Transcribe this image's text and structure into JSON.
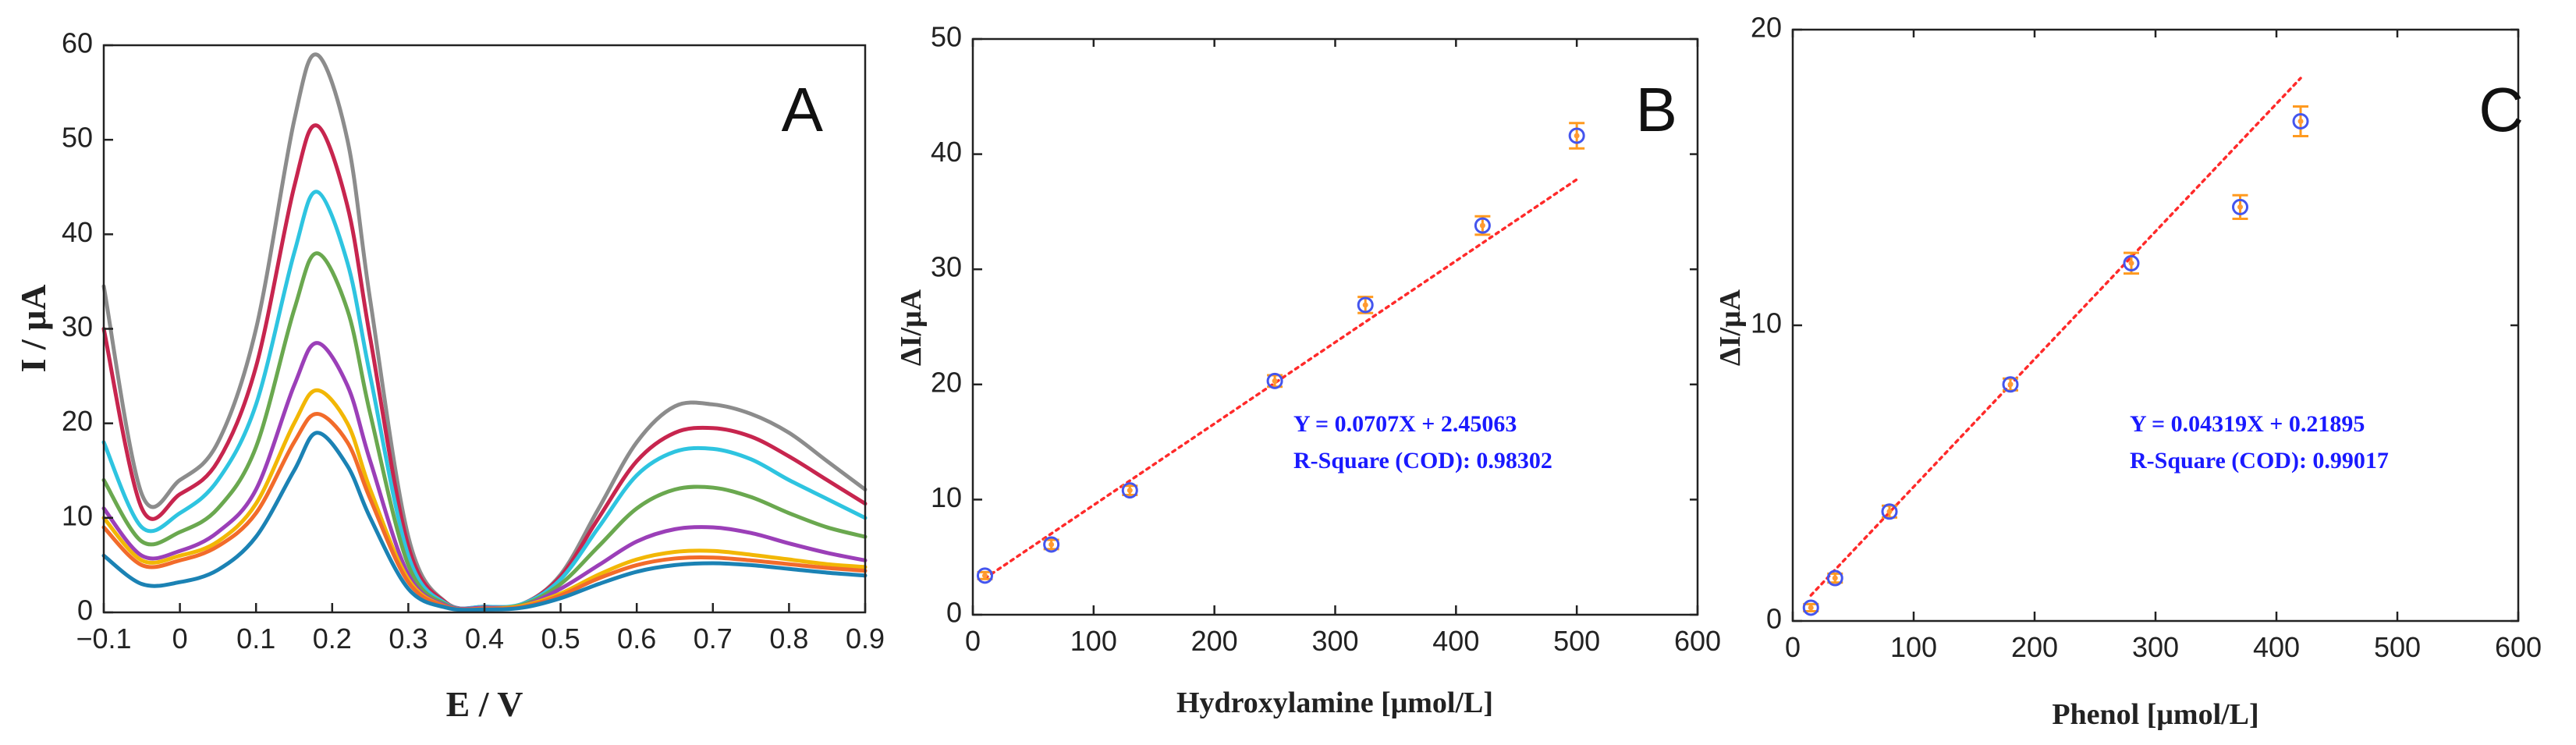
{
  "colors": {
    "fit_line": "#ff2a2a",
    "marker_edge": "#4455ee",
    "marker_fill": "#ff9a33",
    "error_bar": "#ff9a1f",
    "equation_text": "#1a1aff"
  },
  "chart_data": [
    {
      "panel": "A",
      "type": "line",
      "xlabel": "E / V",
      "ylabel": "I / μA",
      "xlim": [
        -0.1,
        0.9
      ],
      "ylim": [
        0,
        60
      ],
      "x_ticks": [
        "−0.1",
        "0",
        "0.1",
        "0.2",
        "0.3",
        "0.4",
        "0.5",
        "0.6",
        "0.7",
        "0.8",
        "0.9"
      ],
      "y_ticks": [
        "0",
        "10",
        "20",
        "30",
        "40",
        "50",
        "60"
      ],
      "grid": false,
      "legend": "none",
      "series": [
        {
          "color": "#8c8c8c",
          "x": [
            -0.1,
            -0.05,
            0.0,
            0.05,
            0.1,
            0.15,
            0.18,
            0.22,
            0.25,
            0.3,
            0.35,
            0.4,
            0.45,
            0.5,
            0.55,
            0.6,
            0.65,
            0.7,
            0.75,
            0.8,
            0.85,
            0.9
          ],
          "y": [
            34.5,
            12.5,
            14,
            18,
            30,
            52,
            59,
            50,
            33,
            8,
            1,
            0.6,
            0.9,
            4,
            11,
            18,
            21.8,
            22,
            21,
            19,
            16,
            13
          ]
        },
        {
          "color": "#c7254e",
          "x": [
            -0.1,
            -0.05,
            0.0,
            0.05,
            0.1,
            0.15,
            0.18,
            0.22,
            0.25,
            0.3,
            0.35,
            0.4,
            0.45,
            0.5,
            0.55,
            0.6,
            0.65,
            0.7,
            0.75,
            0.8,
            0.85,
            0.9
          ],
          "y": [
            30,
            11,
            12.5,
            16,
            26,
            45,
            51.5,
            43,
            29,
            7,
            1,
            0.6,
            0.9,
            3.8,
            10,
            16,
            19,
            19.5,
            18.6,
            16.5,
            14,
            11.5
          ]
        },
        {
          "color": "#2ec4e0",
          "x": [
            -0.1,
            -0.05,
            0.0,
            0.05,
            0.1,
            0.15,
            0.18,
            0.22,
            0.25,
            0.3,
            0.35,
            0.4,
            0.45,
            0.5,
            0.55,
            0.6,
            0.65,
            0.7,
            0.75,
            0.8,
            0.85,
            0.9
          ],
          "y": [
            18,
            9,
            10.5,
            14,
            22,
            38,
            44.5,
            37,
            25,
            6,
            0.9,
            0.6,
            0.9,
            3.5,
            9,
            14.5,
            17,
            17.3,
            16.2,
            14,
            12,
            10
          ]
        },
        {
          "color": "#6aa84f",
          "x": [
            -0.1,
            -0.05,
            0.0,
            0.05,
            0.1,
            0.15,
            0.18,
            0.22,
            0.25,
            0.3,
            0.35,
            0.4,
            0.45,
            0.5,
            0.55,
            0.6,
            0.65,
            0.7,
            0.75,
            0.8,
            0.85,
            0.9
          ],
          "y": [
            14,
            7.5,
            8.5,
            11,
            17.5,
            32,
            38,
            32,
            21,
            5,
            0.8,
            0.5,
            0.8,
            3,
            7,
            11,
            13,
            13.2,
            12.2,
            10.5,
            9,
            8
          ]
        },
        {
          "color": "#9b3fb8",
          "x": [
            -0.1,
            -0.05,
            0.0,
            0.05,
            0.1,
            0.15,
            0.18,
            0.22,
            0.25,
            0.3,
            0.35,
            0.4,
            0.45,
            0.5,
            0.55,
            0.6,
            0.65,
            0.7,
            0.75,
            0.8,
            0.85,
            0.9
          ],
          "y": [
            11,
            6,
            6.5,
            8.5,
            13,
            24,
            28.5,
            24,
            16,
            4,
            0.7,
            0.5,
            0.7,
            2.5,
            5,
            7.5,
            8.8,
            9,
            8.4,
            7.3,
            6.3,
            5.5
          ]
        },
        {
          "color": "#f2b705",
          "x": [
            -0.1,
            -0.05,
            0.0,
            0.05,
            0.1,
            0.15,
            0.18,
            0.22,
            0.25,
            0.3,
            0.35,
            0.4,
            0.45,
            0.5,
            0.55,
            0.6,
            0.65,
            0.7,
            0.75,
            0.8,
            0.85,
            0.9
          ],
          "y": [
            10,
            5.5,
            6,
            7.5,
            11.5,
            20,
            23.5,
            20,
            13,
            3.5,
            0.6,
            0.4,
            0.7,
            2,
            4,
            5.6,
            6.4,
            6.5,
            6.1,
            5.6,
            5.1,
            4.8
          ]
        },
        {
          "color": "#f26b2a",
          "x": [
            -0.1,
            -0.05,
            0.0,
            0.05,
            0.1,
            0.15,
            0.18,
            0.22,
            0.25,
            0.3,
            0.35,
            0.4,
            0.45,
            0.5,
            0.55,
            0.6,
            0.65,
            0.7,
            0.75,
            0.8,
            0.85,
            0.9
          ],
          "y": [
            9,
            5,
            5.5,
            7,
            10.5,
            18,
            21,
            18,
            12,
            3.2,
            0.6,
            0.4,
            0.6,
            1.8,
            3.6,
            5,
            5.7,
            5.8,
            5.5,
            5.1,
            4.7,
            4.4
          ]
        },
        {
          "color": "#1b82b4",
          "x": [
            -0.1,
            -0.05,
            0.0,
            0.05,
            0.1,
            0.15,
            0.18,
            0.22,
            0.25,
            0.3,
            0.35,
            0.4,
            0.45,
            0.5,
            0.55,
            0.6,
            0.65,
            0.7,
            0.75,
            0.8,
            0.85,
            0.9
          ],
          "y": [
            6,
            3,
            3.2,
            4.5,
            8,
            15,
            19,
            15.5,
            10,
            2.5,
            0.5,
            0.3,
            0.5,
            1.5,
            3,
            4.3,
            5,
            5.2,
            5,
            4.6,
            4.2,
            3.9
          ]
        }
      ]
    },
    {
      "panel": "B",
      "type": "scatter",
      "xlabel": "Hydroxylamine [μmol/L]",
      "ylabel": "ΔI/μA",
      "xlim": [
        0,
        600
      ],
      "ylim": [
        0,
        50
      ],
      "x_ticks": [
        "0",
        "100",
        "200",
        "300",
        "400",
        "500",
        "600"
      ],
      "y_ticks": [
        "0",
        "10",
        "20",
        "30",
        "40",
        "50"
      ],
      "grid": false,
      "legend": "none",
      "points": [
        {
          "x": 10,
          "y": 3.4,
          "err": 0.3
        },
        {
          "x": 65,
          "y": 6.1,
          "err": 0.4
        },
        {
          "x": 130,
          "y": 10.8,
          "err": 0.4
        },
        {
          "x": 250,
          "y": 20.3,
          "err": 0.5
        },
        {
          "x": 325,
          "y": 26.9,
          "err": 0.7
        },
        {
          "x": 422,
          "y": 33.8,
          "err": 0.8
        },
        {
          "x": 500,
          "y": 41.6,
          "err": 1.1
        }
      ],
      "fit": {
        "slope": 0.0707,
        "intercept": 2.45063,
        "x_range": [
          10,
          500
        ]
      },
      "equation": "Y = 0.0707X + 2.45063",
      "r_square": "R-Square (COD): 0.98302"
    },
    {
      "panel": "C",
      "type": "scatter",
      "xlabel": "Phenol [μmol/L]",
      "ylabel": "ΔI/μA",
      "xlim": [
        0,
        600
      ],
      "ylim": [
        0,
        20
      ],
      "x_ticks": [
        "0",
        "100",
        "200",
        "300",
        "400",
        "500",
        "600"
      ],
      "y_ticks": [
        "0",
        "10",
        "20"
      ],
      "grid": false,
      "legend": "none",
      "points": [
        {
          "x": 15,
          "y": 0.45,
          "err": 0.12
        },
        {
          "x": 35,
          "y": 1.45,
          "err": 0.15
        },
        {
          "x": 80,
          "y": 3.7,
          "err": 0.2
        },
        {
          "x": 180,
          "y": 8.0,
          "err": 0.2
        },
        {
          "x": 280,
          "y": 12.1,
          "err": 0.35
        },
        {
          "x": 370,
          "y": 14.0,
          "err": 0.4
        },
        {
          "x": 420,
          "y": 16.9,
          "err": 0.5
        }
      ],
      "fit": {
        "slope": 0.04319,
        "intercept": 0.21895,
        "x_range": [
          15,
          420
        ]
      },
      "equation": "Y = 0.04319X + 0.21895",
      "r_square": "R-Square (COD): 0.99017"
    }
  ]
}
